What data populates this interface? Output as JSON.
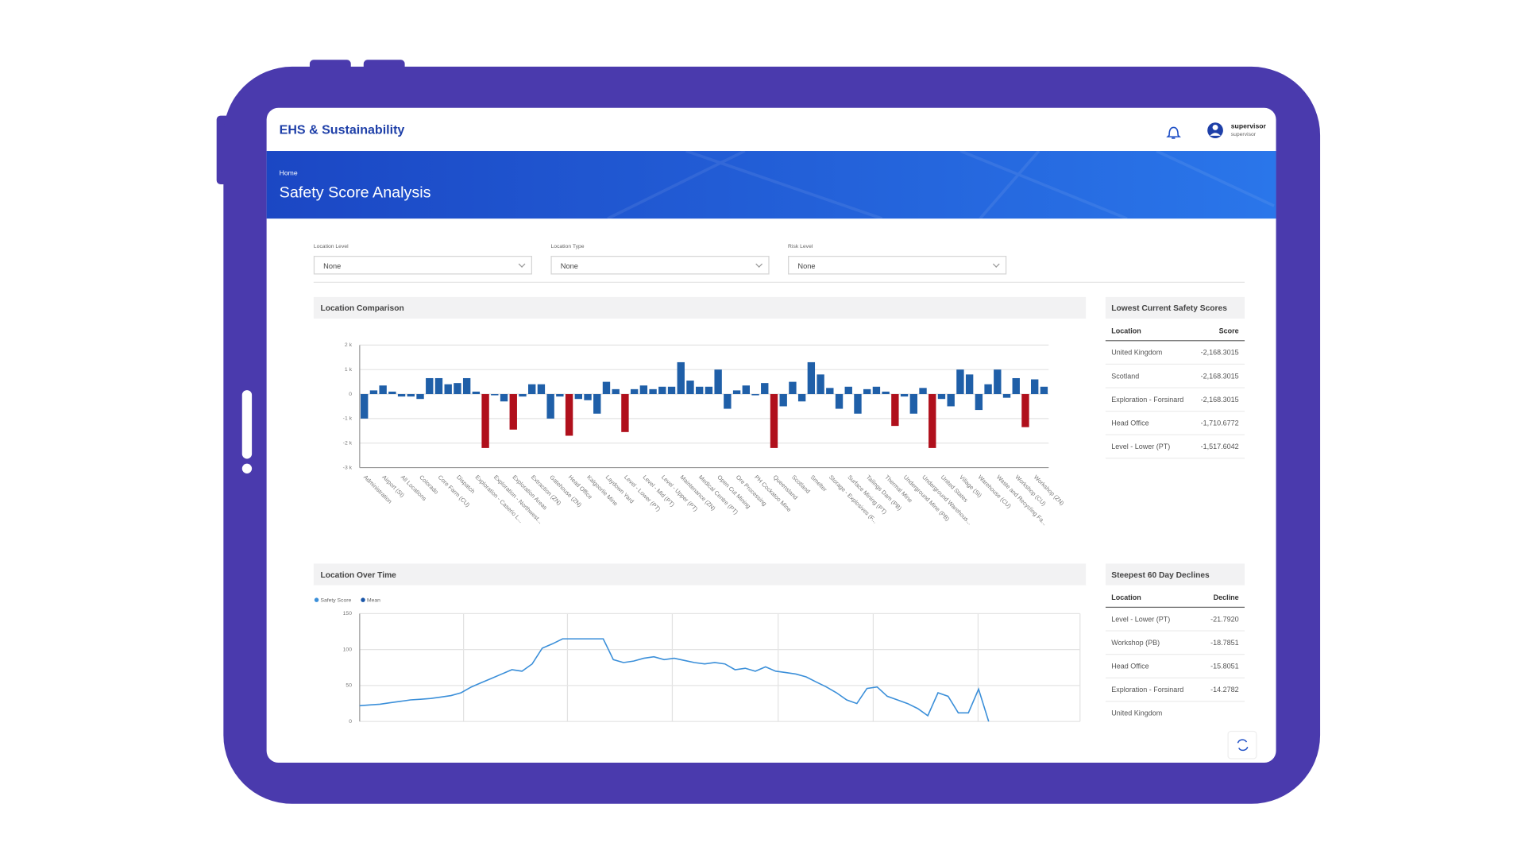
{
  "header": {
    "app_title": "EHS & Sustainability",
    "user_name": "supervisor",
    "user_role": "supervisor"
  },
  "banner": {
    "breadcrumb": "Home",
    "title": "Safety Score Analysis"
  },
  "filters": [
    {
      "label": "Location Level",
      "value": "None"
    },
    {
      "label": "Location Type",
      "value": "None"
    },
    {
      "label": "Risk Level",
      "value": "None"
    }
  ],
  "tables": [
    {
      "title": "Lowest Current Safety Scores",
      "columns": [
        "Location",
        "Score"
      ],
      "rows": [
        [
          "United Kingdom",
          "-2,168.3015"
        ],
        [
          "Scotland",
          "-2,168.3015"
        ],
        [
          "Exploration - Forsinard",
          "-2,168.3015"
        ],
        [
          "Head Office",
          "-1,710.6772"
        ],
        [
          "Level - Lower (PT)",
          "-1,517.6042"
        ]
      ]
    },
    {
      "title": "Steepest 60 Day Declines",
      "columns": [
        "Location",
        "Decline"
      ],
      "rows": [
        [
          "Level - Lower (PT)",
          "-21.7920"
        ],
        [
          "Workshop (PB)",
          "-18.7851"
        ],
        [
          "Head Office",
          "-15.8051"
        ],
        [
          "Exploration - Forsinard",
          "-14.2782"
        ],
        [
          "United Kingdom",
          ""
        ]
      ]
    }
  ],
  "chart_data": [
    {
      "type": "bar",
      "title": "Location Comparison",
      "categories": [
        "Administration",
        null,
        "Airport (SI)",
        null,
        "All Locations",
        null,
        "Colorado",
        null,
        "Core Farm (CU)",
        null,
        "Dispatch",
        null,
        "Exploration - Caserio L...",
        null,
        "Exploration - Northwest...",
        null,
        "Exploration Areas",
        null,
        "Extraction (ZN)",
        null,
        "Gatehouse (ZN)",
        null,
        "Head Office",
        null,
        "Kalgoorlie Mine",
        null,
        "Laydown Yard",
        null,
        "Level - Lower (PT)",
        null,
        "Level - Mid (PT)",
        null,
        "Level - Upper (PT)",
        null,
        "Maintenance (ZN)",
        null,
        "Medical Centre (PT)",
        null,
        "Open Cut Mining",
        null,
        "Ore Processing",
        null,
        "PH Cockatoo Mine",
        null,
        "Queensland",
        null,
        "Scotland",
        null,
        "Smelter",
        null,
        "Storage - Explosives (F...",
        null,
        "Surface Mining (PT)",
        null,
        "Tailings Dam (PB)",
        null,
        "Thermal Mine",
        null,
        "Underground Mine (PB)",
        null,
        "Underground Warehous...",
        null,
        "United States",
        null,
        "Village (SI)",
        null,
        "Warehouse (CU)",
        null,
        "Waste and Recycling Fa...",
        null,
        "Workshop (CU)",
        null,
        "Workshop (ZN)",
        null
      ],
      "values": [
        -1000,
        150,
        350,
        100,
        -100,
        -100,
        -200,
        650,
        650,
        400,
        450,
        650,
        100,
        -2200,
        -50,
        -300,
        -1450,
        -100,
        400,
        400,
        -1000,
        -100,
        -1700,
        -200,
        -250,
        -800,
        500,
        200,
        -1550,
        200,
        350,
        200,
        300,
        300,
        1300,
        550,
        300,
        300,
        1000,
        -600,
        150,
        350,
        -50,
        450,
        -2200,
        -500,
        500,
        -300,
        1300,
        800,
        250,
        -600,
        300,
        -800,
        200,
        300,
        100,
        -1300,
        -100,
        -800,
        250,
        -2200,
        -200,
        -500,
        1000,
        800,
        -650,
        400,
        1000,
        -150,
        650,
        -1350,
        600,
        300
      ],
      "colors": [
        "#1f5fa8",
        "#1f5fa8",
        "#1f5fa8",
        "#1f5fa8",
        "#1f5fa8",
        "#1f5fa8",
        "#1f5fa8",
        "#1f5fa8",
        "#1f5fa8",
        "#1f5fa8",
        "#1f5fa8",
        "#1f5fa8",
        "#1f5fa8",
        "#b0101c",
        "#1f5fa8",
        "#1f5fa8",
        "#b0101c",
        "#1f5fa8",
        "#1f5fa8",
        "#1f5fa8",
        "#1f5fa8",
        "#1f5fa8",
        "#b0101c",
        "#1f5fa8",
        "#1f5fa8",
        "#1f5fa8",
        "#1f5fa8",
        "#1f5fa8",
        "#b0101c",
        "#1f5fa8",
        "#1f5fa8",
        "#1f5fa8",
        "#1f5fa8",
        "#1f5fa8",
        "#1f5fa8",
        "#1f5fa8",
        "#1f5fa8",
        "#1f5fa8",
        "#1f5fa8",
        "#1f5fa8",
        "#1f5fa8",
        "#1f5fa8",
        "#1f5fa8",
        "#1f5fa8",
        "#b0101c",
        "#1f5fa8",
        "#1f5fa8",
        "#1f5fa8",
        "#1f5fa8",
        "#1f5fa8",
        "#1f5fa8",
        "#1f5fa8",
        "#1f5fa8",
        "#1f5fa8",
        "#1f5fa8",
        "#1f5fa8",
        "#1f5fa8",
        "#b0101c",
        "#1f5fa8",
        "#1f5fa8",
        "#1f5fa8",
        "#b0101c",
        "#1f5fa8",
        "#1f5fa8",
        "#1f5fa8",
        "#1f5fa8",
        "#1f5fa8",
        "#1f5fa8",
        "#1f5fa8",
        "#1f5fa8",
        "#1f5fa8",
        "#b0101c",
        "#1f5fa8",
        "#1f5fa8"
      ],
      "ylim": [
        -3000,
        2000
      ],
      "yticks": [
        {
          "value": -3000,
          "label": "-3 k"
        },
        {
          "value": -2000,
          "label": "-2 k"
        },
        {
          "value": -1000,
          "label": "-1 k"
        },
        0,
        {
          "value": 1000,
          "label": "1 k"
        },
        {
          "value": 2000,
          "label": "2 k"
        }
      ],
      "grid": true
    },
    {
      "type": "line",
      "title": "Location Over Time",
      "series": [
        {
          "name": "Safety Score",
          "color": "#3b8fd9",
          "values": [
            22,
            23,
            24,
            26,
            28,
            30,
            31,
            32,
            34,
            36,
            40,
            48,
            54,
            60,
            66,
            72,
            70,
            80,
            102,
            108,
            115,
            115,
            115,
            115,
            115,
            86,
            82,
            84,
            88,
            90,
            86,
            88,
            85,
            82,
            80,
            82,
            80,
            72,
            74,
            70,
            76,
            70,
            68,
            66,
            62,
            55,
            48,
            40,
            30,
            25,
            46,
            48,
            35,
            30,
            25,
            18,
            8,
            40,
            35,
            12,
            12,
            45,
            0,
            null,
            null,
            null,
            null,
            null,
            null,
            null,
            null,
            null
          ]
        },
        {
          "name": "Mean",
          "color": "#1a56a8",
          "values": [
            null,
            null,
            null,
            null,
            null,
            null,
            null,
            null,
            null,
            null,
            null,
            null,
            null,
            null,
            null,
            null,
            null,
            null,
            null,
            null,
            null,
            null,
            null,
            null,
            null,
            null,
            null,
            null,
            null,
            null,
            null,
            null,
            null,
            null,
            null,
            null,
            null,
            null,
            null,
            null,
            null,
            null,
            null,
            null,
            null,
            null,
            null,
            null,
            null,
            null,
            null,
            null,
            null,
            null,
            null,
            null,
            null,
            null,
            null,
            null,
            null,
            null,
            null,
            null,
            null,
            null,
            null,
            null,
            null,
            null,
            null,
            null
          ]
        }
      ],
      "ylim": [
        0,
        150
      ],
      "yticks": [
        0,
        50,
        100,
        150
      ],
      "grid": true,
      "legend": "top-left"
    }
  ]
}
